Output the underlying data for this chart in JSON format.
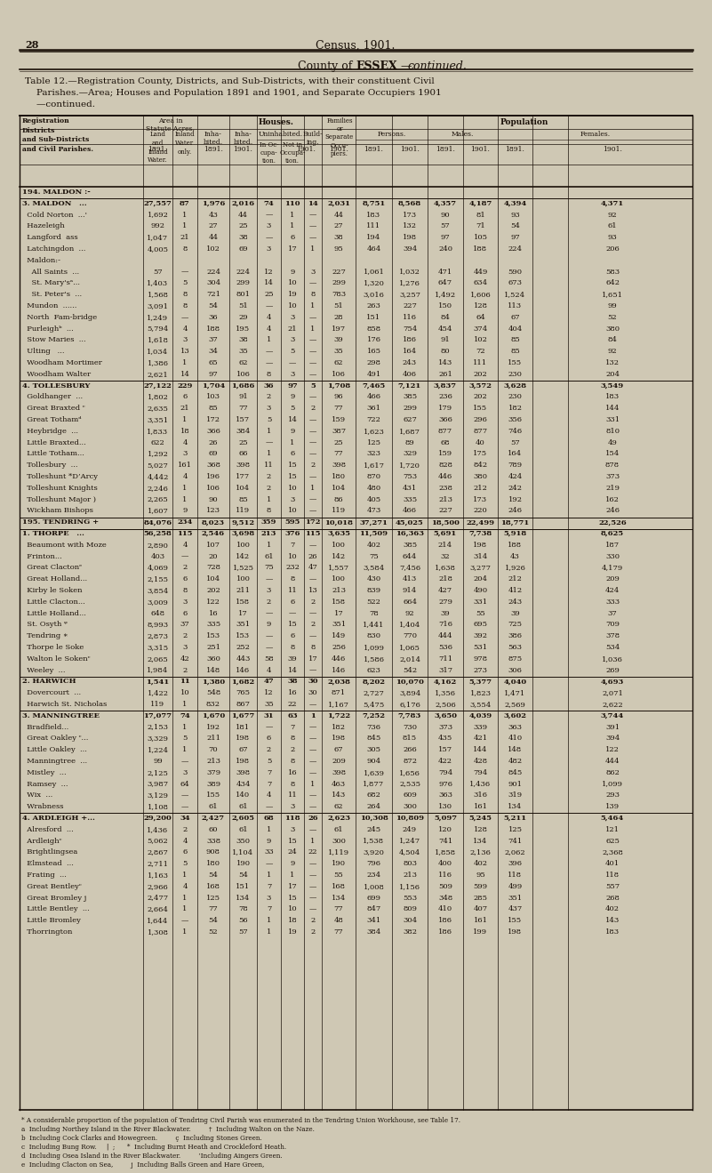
{
  "bg_color": "#cfc8b4",
  "text_color": "#1a1008",
  "rows": [
    [
      "194. MALDON :-",
      "",
      "",
      "",
      "",
      "",
      "",
      "",
      "",
      "",
      "",
      "",
      "",
      "",
      "",
      "",
      "cont."
    ],
    [
      "3. MALDON   ...",
      "27,557",
      "87",
      "1,976",
      "2,016",
      "74",
      "110",
      "14",
      "2,031",
      "8,751",
      "8,568",
      "4,357",
      "4,187",
      "4,394",
      "4,371",
      "",
      ""
    ],
    [
      "  Cold Norton  ...'",
      "1,692",
      "1",
      "43",
      "44",
      "—",
      "1",
      "—",
      "44",
      "183",
      "173",
      "90",
      "81",
      "93",
      "92",
      "",
      ""
    ],
    [
      "  Hazeleigh",
      "992",
      "1",
      "27",
      "25",
      "3",
      "1",
      "—",
      "27",
      "111",
      "132",
      "57",
      "71",
      "54",
      "61",
      "",
      ""
    ],
    [
      "  Langford  ass",
      "1,047",
      "21",
      "44",
      "38",
      "—",
      "6",
      "—",
      "38",
      "194",
      "198",
      "97",
      "105",
      "97",
      "93",
      "",
      ""
    ],
    [
      "  Latchingdon  ...",
      "4,005",
      "8",
      "102",
      "69",
      "3",
      "17",
      "1",
      "95",
      "464",
      "394",
      "240",
      "188",
      "224",
      "206",
      "",
      ""
    ],
    [
      "  Maldon:-",
      "",
      "",
      "",
      "",
      "",
      "",
      "",
      "",
      "",
      "",
      "",
      "",
      "",
      "",
      "",
      ""
    ],
    [
      "    All Saints  ...",
      "57",
      "—",
      "224",
      "224",
      "12",
      "9",
      "3",
      "227",
      "1,061",
      "1,032",
      "471",
      "449",
      "590",
      "583",
      "",
      ""
    ],
    [
      "    St. Mary'sᵃ...",
      "1,403",
      "5",
      "304",
      "299",
      "14",
      "10",
      "—",
      "299",
      "1,320",
      "1,276",
      "647",
      "634",
      "673",
      "642",
      "",
      ""
    ],
    [
      "    St. Peter's  ...",
      "1,568",
      "8",
      "721",
      "801",
      "25",
      "19",
      "8",
      "783",
      "3,016",
      "3,257",
      "1,492",
      "1,606",
      "1,524",
      "1,651",
      "",
      ""
    ],
    [
      "  Mundon  ......",
      "3,091",
      "8",
      "54",
      "51",
      "—",
      "10",
      "1",
      "51",
      "263",
      "227",
      "150",
      "128",
      "113",
      "99",
      "",
      ""
    ],
    [
      "  North  Fam-bridge",
      "1,249",
      "—",
      "36",
      "29",
      "4",
      "3",
      "—",
      "28",
      "151",
      "116",
      "84",
      "64",
      "67",
      "52",
      "",
      ""
    ],
    [
      "  Purleighᵇ  ...",
      "5,794",
      "4",
      "188",
      "195",
      "4",
      "21",
      "1",
      "197",
      "858",
      "754",
      "454",
      "374",
      "404",
      "380",
      "",
      ""
    ],
    [
      "  Stow Maries  ...",
      "1,618",
      "3",
      "37",
      "38",
      "1",
      "3",
      "—",
      "39",
      "176",
      "186",
      "91",
      "102",
      "85",
      "84",
      "",
      ""
    ],
    [
      "  Ulting   ...",
      "1,034",
      "13",
      "34",
      "35",
      "—",
      "5",
      "—",
      "35",
      "165",
      "164",
      "80",
      "72",
      "85",
      "92",
      "",
      ""
    ],
    [
      "  Woodham Mortimer",
      "1,386",
      "1",
      "65",
      "62",
      "—",
      "—",
      "—",
      "62",
      "298",
      "243",
      "143",
      "111",
      "155",
      "132",
      "",
      ""
    ],
    [
      "  Woodham Walter",
      "2,621",
      "14",
      "97",
      "106",
      "8",
      "3",
      "—",
      "106",
      "491",
      "406",
      "261",
      "202",
      "230",
      "204",
      "",
      ""
    ],
    [
      "4. TOLLESBURY",
      "27,122",
      "229",
      "1,704",
      "1,686",
      "36",
      "97",
      "5",
      "1,708",
      "7,465",
      "7,121",
      "3,837",
      "3,572",
      "3,628",
      "3,549",
      "",
      ""
    ],
    [
      "  Goldhanger  ...",
      "1,802",
      "6",
      "103",
      "91",
      "2",
      "9",
      "—",
      "96",
      "466",
      "385",
      "236",
      "202",
      "230",
      "183",
      "",
      ""
    ],
    [
      "  Great Braxted ᶜ",
      "2,635",
      "21",
      "85",
      "77",
      "3",
      "5",
      "2",
      "77",
      "361",
      "299",
      "179",
      "155",
      "182",
      "144",
      "",
      ""
    ],
    [
      "  Great Tothamᵈ",
      "3,351",
      "1",
      "172",
      "157",
      "5",
      "14",
      "—",
      "159",
      "722",
      "627",
      "366",
      "296",
      "356",
      "331",
      "",
      ""
    ],
    [
      "  Heybridge  ...",
      "1,833",
      "18",
      "366",
      "384",
      "1",
      "9",
      "—",
      "387",
      "1,623",
      "1,687",
      "877",
      "877",
      "746",
      "810",
      "",
      ""
    ],
    [
      "  Little Braxted...",
      "622",
      "4",
      "26",
      "25",
      "—",
      "1",
      "—",
      "25",
      "125",
      "89",
      "68",
      "40",
      "57",
      "49",
      "",
      ""
    ],
    [
      "  Little Totham...",
      "1,292",
      "3",
      "69",
      "66",
      "1",
      "6",
      "—",
      "77",
      "323",
      "329",
      "159",
      "175",
      "164",
      "154",
      "",
      ""
    ],
    [
      "  Tollesbury  ...",
      "5,027",
      "161",
      "368",
      "398",
      "11",
      "15",
      "2",
      "398",
      "1,617",
      "1,720",
      "828",
      "842",
      "789",
      "878",
      "",
      ""
    ],
    [
      "  Tolleshunt *D’Arcy",
      "4,442",
      "4",
      "196",
      "177",
      "2",
      "15",
      "—",
      "180",
      "870",
      "753",
      "446",
      "380",
      "424",
      "373",
      "",
      ""
    ],
    [
      "  Tolleshunt Knights",
      "2,246",
      "1",
      "106",
      "104",
      "2",
      "10",
      "1",
      "104",
      "480",
      "431",
      "238",
      "212",
      "242",
      "219",
      "",
      ""
    ],
    [
      "  Tolleshunt Major )",
      "2,265",
      "1",
      "90",
      "85",
      "1",
      "3",
      "—",
      "86",
      "405",
      "335",
      "213",
      "173",
      "192",
      "162",
      "",
      ""
    ],
    [
      "  Wickham Bishops",
      "1,607",
      "9",
      "123",
      "119",
      "8",
      "10",
      "—",
      "119",
      "473",
      "466",
      "227",
      "220",
      "246",
      "246",
      "",
      ""
    ],
    [
      "195. TENDRING +",
      "84,076",
      "234",
      "8,023",
      "9,512",
      "359",
      "595",
      "172",
      "10,018",
      "37,271",
      "45,025",
      "18,500",
      "22,499",
      "18,771",
      "22,526",
      "",
      ""
    ],
    [
      "1. THORPE   ...",
      "56,258",
      "115",
      "2,546",
      "3,698",
      "213",
      "376",
      "115",
      "3,635",
      "11,509",
      "16,363",
      "5,691",
      "7,738",
      "5,918",
      "8,625",
      "",
      ""
    ],
    [
      "  Beaumont with Moze",
      "2,890",
      "4",
      "107",
      "100",
      "1",
      "7",
      "—",
      "100",
      "402",
      "385",
      "214",
      "198",
      "188",
      "187",
      "",
      ""
    ],
    [
      "  Frinton...",
      "403",
      "—",
      "20",
      "142",
      "61",
      "10",
      "26",
      "142",
      "75",
      "644",
      "32",
      "314",
      "43",
      "330",
      "",
      ""
    ],
    [
      "  Great Clactonᵉ",
      "4,069",
      "2",
      "728",
      "1,525",
      "75",
      "232",
      "47",
      "1,557",
      "3,584",
      "7,456",
      "1,638",
      "3,277",
      "1,926",
      "4,179",
      "",
      ""
    ],
    [
      "  Great Holland...",
      "2,155",
      "6",
      "104",
      "100",
      "—",
      "8",
      "—",
      "100",
      "430",
      "413",
      "218",
      "204",
      "212",
      "209",
      "",
      ""
    ],
    [
      "  Kirby le Soken",
      "3,854",
      "8",
      "202",
      "211",
      "3",
      "11",
      "13",
      "213",
      "839",
      "914",
      "427",
      "490",
      "412",
      "424",
      "",
      ""
    ],
    [
      "  Little Clacton...",
      "3,009",
      "3",
      "122",
      "158",
      "2",
      "6",
      "2",
      "158",
      "522",
      "664",
      "279",
      "331",
      "243",
      "333",
      "",
      ""
    ],
    [
      "  Little Holland...",
      "648",
      "6",
      "16",
      "17",
      "—",
      "—",
      "—",
      "17",
      "78",
      "92",
      "39",
      "55",
      "39",
      "37",
      "",
      ""
    ],
    [
      "  St. Osyth ᵠ",
      "8,993",
      "37",
      "335",
      "351",
      "9",
      "15",
      "2",
      "351",
      "1,441",
      "1,404",
      "716",
      "695",
      "725",
      "709",
      "",
      ""
    ],
    [
      "  Tendring ∗",
      "2,873",
      "2",
      "153",
      "153",
      "—",
      "6",
      "—",
      "149",
      "830",
      "770",
      "444",
      "392",
      "386",
      "378",
      "",
      ""
    ],
    [
      "  Thorpe le Soke",
      "3,315",
      "3",
      "251",
      "252",
      "—",
      "8",
      "8",
      "256",
      "1,099",
      "1,065",
      "536",
      "531",
      "563",
      "534",
      "",
      ""
    ],
    [
      "  Walton le Sokenᶜ",
      "2,065",
      "42",
      "360",
      "443",
      "58",
      "39",
      "17",
      "446",
      "1,586",
      "2,014",
      "711",
      "978",
      "875",
      "1,036",
      "",
      ""
    ],
    [
      "  Weeley  ...",
      "1,984",
      "2",
      "148",
      "146",
      "4",
      "14",
      "—",
      "146",
      "623",
      "542",
      "317",
      "273",
      "306",
      "269",
      "",
      ""
    ],
    [
      "2. HARWICH",
      "1,541",
      "11",
      "1,380",
      "1,682",
      "47",
      "38",
      "30",
      "2,038",
      "8,202",
      "10,070",
      "4,162",
      "5,377",
      "4,040",
      "4,693",
      "",
      ""
    ],
    [
      "  Dovercourt  ...",
      "1,422",
      "10",
      "548",
      "765",
      "12",
      "16",
      "30",
      "871",
      "2,727",
      "3,894",
      "1,356",
      "1,823",
      "1,471",
      "2,071",
      "",
      ""
    ],
    [
      "  Harwich St. Nicholas",
      "119",
      "1",
      "832",
      "867",
      "35",
      "22",
      "—",
      "1,167",
      "5,475",
      "6,176",
      "2,506",
      "3,554",
      "2,569",
      "2,622",
      "",
      ""
    ],
    [
      "3. MANNINGTREE",
      "17,077",
      "74",
      "1,670",
      "1,677",
      "31",
      "63",
      "1",
      "1,722",
      "7,252",
      "7,783",
      "3,650",
      "4,039",
      "3,602",
      "3,744",
      "",
      ""
    ],
    [
      "  Bradfield...",
      "2,153",
      "1",
      "192",
      "181",
      "—",
      "7",
      "—",
      "182",
      "736",
      "730",
      "373",
      "339",
      "363",
      "391",
      "",
      ""
    ],
    [
      "  Great Oakley ᶜ...",
      "3,329",
      "5",
      "211",
      "198",
      "6",
      "8",
      "—",
      "198",
      "845",
      "815",
      "435",
      "421",
      "410",
      "394",
      "",
      ""
    ],
    [
      "  Little Oakley  ...",
      "1,224",
      "1",
      "70",
      "67",
      "2",
      "2",
      "—",
      "67",
      "305",
      "266",
      "157",
      "144",
      "148",
      "122",
      "",
      ""
    ],
    [
      "  Manningtree  ...",
      "99",
      "—",
      "213",
      "198",
      "5",
      "8",
      "—",
      "209",
      "904",
      "872",
      "422",
      "428",
      "482",
      "444",
      "",
      ""
    ],
    [
      "  Mistley  ...",
      "2,125",
      "3",
      "379",
      "398",
      "7",
      "16",
      "—",
      "398",
      "1,639",
      "1,656",
      "794",
      "794",
      "845",
      "862",
      "",
      ""
    ],
    [
      "  Ramsey  ...",
      "3,987",
      "64",
      "389",
      "434",
      "7",
      "8",
      "1",
      "463",
      "1,877",
      "2,535",
      "976",
      "1,436",
      "901",
      "1,099",
      "",
      ""
    ],
    [
      "  Wix  ...",
      "3,129",
      "—",
      "155",
      "140",
      "4",
      "11",
      "—",
      "143",
      "682",
      "609",
      "363",
      "316",
      "319",
      "293",
      "",
      ""
    ],
    [
      "  Wrabness",
      "1,108",
      "—",
      "61",
      "61",
      "—",
      "3",
      "—",
      "62",
      "264",
      "300",
      "130",
      "161",
      "134",
      "139",
      "",
      ""
    ],
    [
      "4. ARDLEIGH +...",
      "29,200",
      "34",
      "2,427",
      "2,605",
      "68",
      "118",
      "26",
      "2,623",
      "10,308",
      "10,809",
      "5,097",
      "5,245",
      "5,211",
      "5,464",
      "",
      ""
    ],
    [
      "  Alresford  ...",
      "1,436",
      "2",
      "60",
      "61",
      "1",
      "3",
      "—",
      "61",
      "245",
      "249",
      "120",
      "128",
      "125",
      "121",
      "",
      ""
    ],
    [
      "  Ardleighᶜ",
      "5,062",
      "4",
      "338",
      "350",
      "9",
      "15",
      "1",
      "300",
      "1,538",
      "1,247",
      "741",
      "134",
      "741",
      "625",
      "",
      ""
    ],
    [
      "  Brightlingsea",
      "2,867",
      "6",
      "908",
      "1,104",
      "33",
      "24",
      "22",
      "1,119",
      "3,920",
      "4,504",
      "1,858",
      "2,136",
      "2,062",
      "2,368",
      "",
      ""
    ],
    [
      "  Elmstead  ...",
      "2,711",
      "5",
      "180",
      "190",
      "—",
      "9",
      "—",
      "190",
      "796",
      "803",
      "400",
      "402",
      "396",
      "401",
      "",
      ""
    ],
    [
      "  Frating  ...",
      "1,163",
      "1",
      "54",
      "54",
      "1",
      "1",
      "—",
      "55",
      "234",
      "213",
      "116",
      "95",
      "118",
      "118",
      "",
      ""
    ],
    [
      "  Great Bentleyᶜ",
      "2,966",
      "4",
      "168",
      "151",
      "7",
      "17",
      "—",
      "168",
      "1,008",
      "1,156",
      "509",
      "599",
      "499",
      "557",
      "",
      ""
    ],
    [
      "  Great Bromley j",
      "2,477",
      "1",
      "125",
      "134",
      "3",
      "15",
      "—",
      "134",
      "699",
      "553",
      "348",
      "285",
      "351",
      "268",
      "",
      ""
    ],
    [
      "  Little Bentley  ...",
      "2,664",
      "1",
      "77",
      "78",
      "7",
      "10",
      "—",
      "77",
      "847",
      "809",
      "410",
      "407",
      "437",
      "402",
      "",
      ""
    ],
    [
      "  Little Bromley",
      "1,644",
      "—",
      "54",
      "56",
      "1",
      "18",
      "2",
      "48",
      "341",
      "304",
      "186",
      "161",
      "155",
      "143",
      "",
      ""
    ],
    [
      "  Thorrington",
      "1,308",
      "1",
      "52",
      "57",
      "1",
      "19",
      "2",
      "77",
      "384",
      "382",
      "186",
      "199",
      "198",
      "183",
      "",
      ""
    ]
  ],
  "footnotes": [
    "* A considerable proportion of the population of Tendring Civil Parish was enumerated in the Tendring Union Workhouse, see Table 17.",
    "a  Including Northey Island in the River Blackwater.         †  Including Walton on the Naze.",
    "b  Including Cock Clarks and Howegreen.         ç  Including Stones Green.",
    "c  Including Bung Row.     |  ;      *  Including Burnt Heath and Crockleford Heath.",
    "d  Including Osea Island in the River Blackwater.         ’Including Aingers Green.",
    "e  Including Clacton on Sea,         j  Including Balls Green and Hare Green,"
  ]
}
